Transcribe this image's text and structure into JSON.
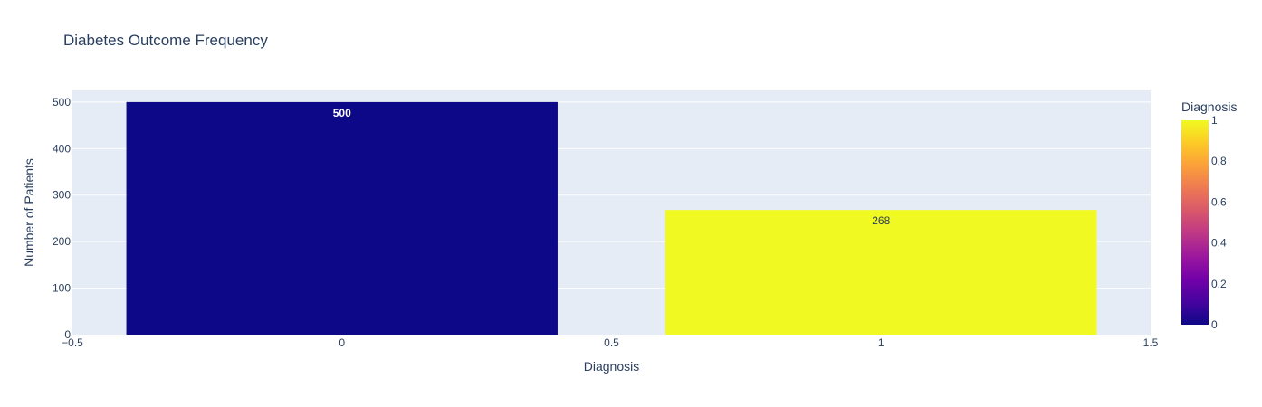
{
  "chart_data": {
    "type": "bar",
    "title": "Diabetes Outcome Frequency",
    "xlabel": "Diagnosis",
    "ylabel": "Number of Patients",
    "x": [
      0,
      1
    ],
    "values": [
      500,
      268
    ],
    "value_labels": [
      "500",
      "268"
    ],
    "bar_colors": [
      "#0d0887",
      "#f0f921"
    ],
    "value_label_colors": [
      "#ffffff",
      "#2a3f5f"
    ],
    "xlim": [
      -0.5,
      1.5
    ],
    "ylim": [
      0,
      525
    ],
    "x_ticks": [
      -0.5,
      0,
      0.5,
      1,
      1.5
    ],
    "x_tick_labels": [
      "−0.5",
      "0",
      "0.5",
      "1",
      "1.5"
    ],
    "y_ticks": [
      0,
      100,
      200,
      300,
      400,
      500
    ],
    "y_tick_labels": [
      "0",
      "100",
      "200",
      "300",
      "400",
      "500"
    ],
    "grid": true,
    "colorbar": {
      "title": "Diagnosis",
      "range": [
        0,
        1
      ],
      "ticks": [
        0,
        0.2,
        0.4,
        0.6,
        0.8,
        1
      ],
      "tick_labels": [
        "0",
        "0.2",
        "0.4",
        "0.6",
        "0.8",
        "1"
      ],
      "colorscale": [
        "#0d0887",
        "#46039f",
        "#7201a8",
        "#9c179e",
        "#bd3786",
        "#d8576b",
        "#ed7953",
        "#fb9f3a",
        "#fdca26",
        "#f0f921"
      ]
    },
    "colors": {
      "plot_bg": "#e5ecf6",
      "grid": "#ffffff",
      "text": "#2a3f5f",
      "title": "#2a3f5f"
    }
  }
}
